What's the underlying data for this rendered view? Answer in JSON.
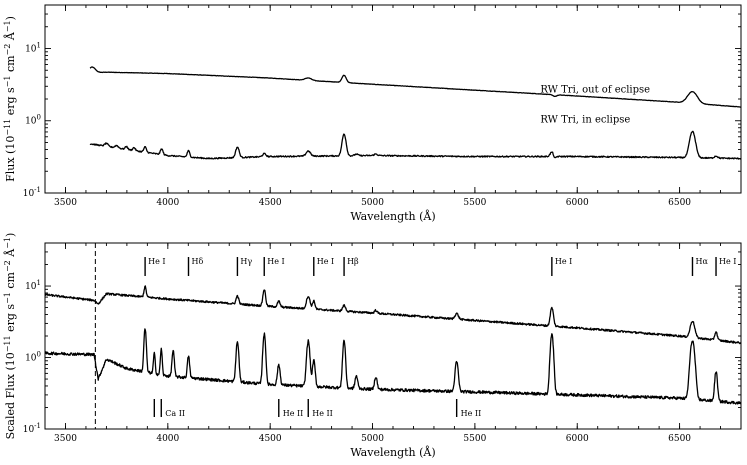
{
  "chart_data": [
    {
      "type": "line",
      "xlabel": "Wavelength (Å)",
      "ylabel": "Flux (10^-11 erg s^-1 cm^-2 Å^-1)",
      "xlim": [
        3400,
        6800
      ],
      "ylim": [
        0.1,
        40
      ],
      "yscale": "log",
      "xticks": [
        "3500",
        "4000",
        "4500",
        "5000",
        "5500",
        "6000",
        "6500"
      ],
      "yticks": [
        "10^-1",
        "10^0",
        "10^1"
      ],
      "annotations": [
        "RW Tri, out of eclipse",
        "RW Tri, in eclipse"
      ],
      "series": [
        {
          "name": "RW Tri, out of eclipse",
          "continuum": [
            [
              3620,
              4.6
            ],
            [
              3700,
              4.7
            ],
            [
              4000,
              4.5
            ],
            [
              4500,
              3.9
            ],
            [
              5000,
              3.2
            ],
            [
              5500,
              2.65
            ],
            [
              6000,
              2.2
            ],
            [
              6500,
              1.8
            ],
            [
              6800,
              1.55
            ]
          ],
          "lines": [
            [
              3630,
              0.2,
              15
            ],
            [
              4686,
              0.08,
              15
            ],
            [
              4861,
              0.26,
              10
            ],
            [
              5890,
              -0.05,
              10
            ],
            [
              6563,
              0.45,
              22
            ]
          ]
        },
        {
          "name": "RW Tri, in eclipse",
          "continuum": [
            [
              3620,
              0.48
            ],
            [
              3800,
              0.4
            ],
            [
              4000,
              0.33
            ],
            [
              4200,
              0.3
            ],
            [
              4500,
              0.32
            ],
            [
              5000,
              0.33
            ],
            [
              5500,
              0.32
            ],
            [
              6000,
              0.32
            ],
            [
              6500,
              0.31
            ],
            [
              6800,
              0.3
            ]
          ],
          "lines": [
            [
              3700,
              0.1,
              8
            ],
            [
              3750,
              0.08,
              8
            ],
            [
              3798,
              0.1,
              6
            ],
            [
              3835,
              0.1,
              6
            ],
            [
              3889,
              0.18,
              6
            ],
            [
              3970,
              0.2,
              6
            ],
            [
              4101,
              0.22,
              6
            ],
            [
              4340,
              0.4,
              8
            ],
            [
              4471,
              0.1,
              8
            ],
            [
              4686,
              0.18,
              10
            ],
            [
              4861,
              1.0,
              9
            ],
            [
              4921,
              0.05,
              8
            ],
            [
              5016,
              0.05,
              8
            ],
            [
              5876,
              0.15,
              8
            ],
            [
              5890,
              -0.08,
              5
            ],
            [
              6563,
              1.3,
              13
            ],
            [
              6678,
              0.07,
              8
            ]
          ]
        }
      ]
    },
    {
      "type": "line",
      "xlabel": "Wavelength (Å)",
      "ylabel": "Scaled Flux (10^-11 erg s^-1 cm^-2 Å^-1)",
      "xlim": [
        3400,
        6800
      ],
      "ylim": [
        0.1,
        40
      ],
      "yscale": "log",
      "xticks": [
        "3500",
        "4000",
        "4500",
        "5000",
        "5500",
        "6000",
        "6500"
      ],
      "yticks": [
        "10^-1",
        "10^0",
        "10^1"
      ],
      "balmer_jump": 3646,
      "upper_line_ids": [
        {
          "wl": 3889,
          "label": "He I"
        },
        {
          "wl": 4101,
          "label": "Hδ"
        },
        {
          "wl": 4340,
          "label": "Hγ"
        },
        {
          "wl": 4471,
          "label": "He I"
        },
        {
          "wl": 4713,
          "label": "He I"
        },
        {
          "wl": 4861,
          "label": "Hβ"
        },
        {
          "wl": 5876,
          "label": "He I"
        },
        {
          "wl": 6563,
          "label": "Hα"
        },
        {
          "wl": 6678,
          "label": "He I"
        }
      ],
      "lower_line_ids": [
        {
          "wl": [
            3934,
            3968
          ],
          "label": "Ca II"
        },
        {
          "wl": [
            4542
          ],
          "label": "He II"
        },
        {
          "wl": [
            4686
          ],
          "label": "He II"
        },
        {
          "wl": [
            5411
          ],
          "label": "He II"
        }
      ],
      "series": [
        {
          "continuum": [
            [
              3400,
              7.6
            ],
            [
              3640,
              6.3
            ],
            [
              3660,
              5.6
            ],
            [
              3700,
              7.8
            ],
            [
              4000,
              6.6
            ],
            [
              4500,
              5.2
            ],
            [
              5000,
              4.2
            ],
            [
              5500,
              3.3
            ],
            [
              6000,
              2.6
            ],
            [
              6500,
              2.0
            ],
            [
              6800,
              1.6
            ]
          ],
          "lines": [
            [
              3889,
              0.4,
              5
            ],
            [
              4340,
              0.3,
              6
            ],
            [
              4471,
              0.7,
              6
            ],
            [
              4542,
              0.2,
              6
            ],
            [
              4686,
              0.5,
              8
            ],
            [
              4713,
              0.3,
              6
            ],
            [
              4861,
              0.2,
              7
            ],
            [
              5016,
              0.1,
              6
            ],
            [
              5411,
              0.2,
              8
            ],
            [
              5876,
              0.8,
              7
            ],
            [
              6563,
              0.7,
              10
            ],
            [
              6678,
              0.3,
              6
            ]
          ]
        },
        {
          "continuum": [
            [
              3400,
              1.15
            ],
            [
              3640,
              1.1
            ],
            [
              3660,
              0.5
            ],
            [
              3700,
              0.95
            ],
            [
              3800,
              0.7
            ],
            [
              4000,
              0.55
            ],
            [
              4500,
              0.42
            ],
            [
              5000,
              0.36
            ],
            [
              5500,
              0.33
            ],
            [
              6000,
              0.3
            ],
            [
              6500,
              0.27
            ],
            [
              6800,
              0.23
            ]
          ],
          "lines": [
            [
              3889,
              3.0,
              5
            ],
            [
              3934,
              0.9,
              4
            ],
            [
              3968,
              1.3,
              4
            ],
            [
              4026,
              1.3,
              5
            ],
            [
              4101,
              1.0,
              5
            ],
            [
              4340,
              2.6,
              6
            ],
            [
              4471,
              4.0,
              6
            ],
            [
              4542,
              0.9,
              6
            ],
            [
              4686,
              3.3,
              7
            ],
            [
              4713,
              1.3,
              6
            ],
            [
              4861,
              3.6,
              6
            ],
            [
              4921,
              0.5,
              6
            ],
            [
              5016,
              0.5,
              6
            ],
            [
              5411,
              1.6,
              7
            ],
            [
              5876,
              6.0,
              7
            ],
            [
              6563,
              5.6,
              10
            ],
            [
              6678,
              1.6,
              6
            ]
          ]
        }
      ]
    }
  ]
}
